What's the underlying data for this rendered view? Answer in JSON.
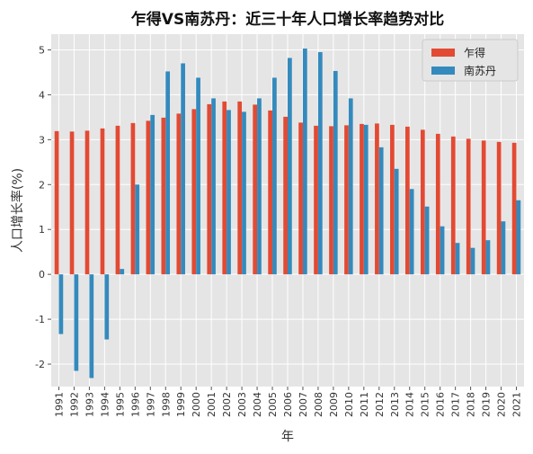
{
  "chart_data": {
    "type": "bar",
    "title": "乍得VS南苏丹：近三十年人口增长率趋势对比",
    "xlabel": "年",
    "ylabel": "人口增长率(%)",
    "ylim": [
      -2.5,
      5.35
    ],
    "yticks": [
      -2,
      -1,
      0,
      1,
      2,
      3,
      4,
      5
    ],
    "grid": true,
    "legend_position": "top-right",
    "categories": [
      "1991",
      "1992",
      "1993",
      "1994",
      "1995",
      "1996",
      "1997",
      "1998",
      "1999",
      "2000",
      "2001",
      "2002",
      "2003",
      "2004",
      "2005",
      "2006",
      "2007",
      "2008",
      "2009",
      "2010",
      "2011",
      "2012",
      "2013",
      "2014",
      "2015",
      "2016",
      "2017",
      "2018",
      "2019",
      "2020",
      "2021"
    ],
    "series": [
      {
        "name": "乍得",
        "color": "#e24a33",
        "values": [
          3.19,
          3.18,
          3.2,
          3.25,
          3.31,
          3.37,
          3.42,
          3.49,
          3.58,
          3.68,
          3.79,
          3.85,
          3.85,
          3.78,
          3.65,
          3.51,
          3.38,
          3.31,
          3.3,
          3.32,
          3.35,
          3.36,
          3.33,
          3.29,
          3.22,
          3.13,
          3.07,
          3.02,
          2.98,
          2.95,
          2.93
        ]
      },
      {
        "name": "南苏丹",
        "color": "#348abd",
        "values": [
          -1.33,
          -2.15,
          -2.31,
          -1.45,
          0.12,
          2.0,
          3.55,
          4.52,
          4.7,
          4.38,
          3.92,
          3.66,
          3.62,
          3.92,
          4.38,
          4.82,
          5.03,
          4.95,
          4.53,
          3.92,
          3.33,
          2.83,
          2.35,
          1.9,
          1.51,
          1.07,
          0.7,
          0.59,
          0.76,
          1.18,
          1.65
        ]
      }
    ]
  }
}
